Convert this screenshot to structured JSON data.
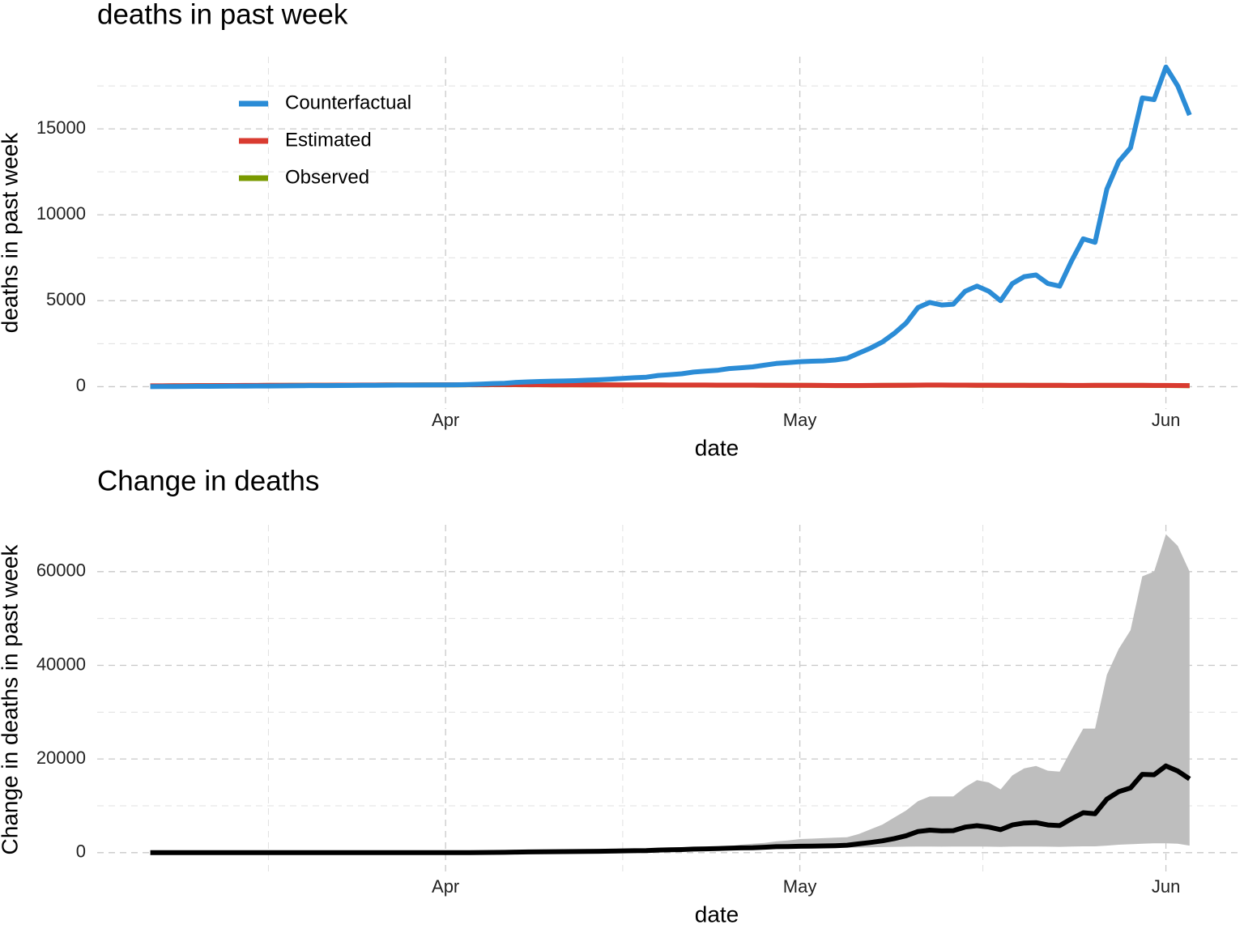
{
  "chart_data": [
    {
      "type": "line",
      "title": "deaths in past week",
      "xlabel": "date",
      "ylabel": "deaths in past week",
      "x": [
        0,
        1,
        2,
        3,
        4,
        5,
        6,
        7,
        8,
        9,
        10,
        11,
        12,
        13,
        14,
        15,
        16,
        17,
        18,
        19,
        20,
        21,
        22,
        23,
        24,
        25,
        26,
        27,
        28,
        29,
        30,
        31,
        32,
        33,
        34,
        35,
        36,
        37,
        38,
        39,
        40,
        41,
        42,
        43,
        44,
        45,
        46,
        47,
        48,
        49,
        50,
        51,
        52,
        53,
        54,
        55,
        56,
        57,
        58,
        59,
        60,
        61,
        62,
        63,
        64,
        65,
        66,
        67,
        68,
        69,
        70,
        71,
        72,
        73,
        74,
        75,
        76,
        77,
        78,
        79,
        80,
        81,
        82,
        83,
        84,
        85,
        86,
        87,
        88
      ],
      "xlim": [
        -4.5,
        92.2
      ],
      "xticks": [
        {
          "value": 25,
          "label": "Apr"
        },
        {
          "value": 55,
          "label": "May"
        },
        {
          "value": 86,
          "label": "Jun"
        }
      ],
      "ylim": [
        -1300,
        19200
      ],
      "yticks": [
        0,
        5000,
        10000,
        15000
      ],
      "grid": true,
      "legend": "top-left",
      "series": [
        {
          "name": "Counterfactual",
          "color": "#2b8cd6",
          "values": [
            0,
            5,
            10,
            15,
            20,
            20,
            25,
            30,
            35,
            40,
            40,
            45,
            50,
            55,
            60,
            60,
            65,
            70,
            75,
            80,
            85,
            90,
            90,
            95,
            100,
            100,
            110,
            130,
            150,
            180,
            200,
            250,
            280,
            300,
            320,
            330,
            350,
            380,
            400,
            440,
            480,
            520,
            550,
            650,
            700,
            750,
            850,
            900,
            950,
            1050,
            1100,
            1150,
            1250,
            1350,
            1400,
            1450,
            1480,
            1500,
            1550,
            1650,
            1950,
            2250,
            2600,
            3100,
            3700,
            4600,
            4900,
            4750,
            4800,
            5550,
            5850,
            5550,
            5000,
            6000,
            6400,
            6500,
            6000,
            5850,
            7300,
            8600,
            8400,
            11500,
            13100,
            13900,
            16800,
            16700,
            18600,
            17500,
            15800
          ]
        },
        {
          "name": "Estimated",
          "color": "#d93b30",
          "values": [
            50,
            50,
            55,
            55,
            60,
            60,
            65,
            65,
            70,
            70,
            75,
            75,
            80,
            80,
            85,
            85,
            90,
            90,
            95,
            95,
            100,
            100,
            100,
            105,
            105,
            110,
            110,
            115,
            115,
            120,
            120,
            120,
            115,
            115,
            110,
            110,
            110,
            105,
            105,
            105,
            100,
            100,
            100,
            100,
            95,
            95,
            95,
            95,
            90,
            90,
            90,
            90,
            85,
            85,
            80,
            80,
            75,
            70,
            65,
            65,
            65,
            70,
            75,
            80,
            85,
            90,
            95,
            95,
            90,
            90,
            85,
            85,
            80,
            80,
            80,
            75,
            75,
            75,
            70,
            70,
            75,
            75,
            75,
            75,
            75,
            70,
            70,
            65,
            60
          ]
        },
        {
          "name": "Observed",
          "color": "#7a9a01",
          "values": [
            45,
            45,
            50,
            50,
            55,
            55,
            60,
            60,
            65,
            65,
            70,
            70,
            75,
            75,
            80,
            80,
            85,
            85,
            90,
            90,
            95,
            95,
            95,
            100,
            100,
            105,
            105,
            110,
            110,
            115,
            115,
            115,
            110,
            110,
            105,
            105,
            105,
            100,
            100,
            100,
            95,
            95,
            95,
            95,
            90,
            90,
            90,
            90,
            85,
            85,
            85,
            85,
            80,
            80,
            75,
            75,
            70,
            65,
            60,
            60,
            60,
            65,
            70,
            75,
            80,
            85,
            90,
            90,
            85,
            85,
            80,
            80,
            75,
            75,
            75,
            70,
            70,
            70,
            65,
            65,
            70,
            70,
            70,
            70,
            70,
            65,
            65,
            60,
            55
          ]
        }
      ]
    },
    {
      "type": "ribbon",
      "title": "Change in deaths",
      "xlabel": "date",
      "ylabel": "Change in deaths in past week",
      "x": [
        0,
        1,
        2,
        3,
        4,
        5,
        6,
        7,
        8,
        9,
        10,
        11,
        12,
        13,
        14,
        15,
        16,
        17,
        18,
        19,
        20,
        21,
        22,
        23,
        24,
        25,
        26,
        27,
        28,
        29,
        30,
        31,
        32,
        33,
        34,
        35,
        36,
        37,
        38,
        39,
        40,
        41,
        42,
        43,
        44,
        45,
        46,
        47,
        48,
        49,
        50,
        51,
        52,
        53,
        54,
        55,
        56,
        57,
        58,
        59,
        60,
        61,
        62,
        63,
        64,
        65,
        66,
        67,
        68,
        69,
        70,
        71,
        72,
        73,
        74,
        75,
        76,
        77,
        78,
        79,
        80,
        81,
        82,
        83,
        84,
        85,
        86,
        87,
        88
      ],
      "xlim": [
        -4.5,
        92.2
      ],
      "xticks": [
        {
          "value": 25,
          "label": "Apr"
        },
        {
          "value": 55,
          "label": "May"
        },
        {
          "value": 86,
          "label": "Jun"
        }
      ],
      "ylim": [
        -4700,
        70000
      ],
      "yticks": [
        0,
        20000,
        40000,
        60000
      ],
      "grid": true,
      "series": [
        {
          "color": "#000000",
          "band_color": "#bebebe",
          "values": [
            0,
            0,
            0,
            0,
            0,
            0,
            0,
            0,
            0,
            0,
            0,
            0,
            0,
            0,
            0,
            0,
            0,
            0,
            0,
            0,
            0,
            0,
            0,
            0,
            0,
            0,
            0,
            15,
            35,
            60,
            80,
            130,
            165,
            185,
            210,
            220,
            245,
            275,
            295,
            340,
            380,
            420,
            450,
            555,
            605,
            655,
            760,
            810,
            860,
            965,
            1015,
            1065,
            1170,
            1275,
            1320,
            1375,
            1410,
            1435,
            1490,
            1590,
            1890,
            2180,
            2525,
            3020,
            3615,
            4510,
            4805,
            4655,
            4710,
            5465,
            5765,
            5470,
            4920,
            5920,
            6325,
            6425,
            5925,
            5775,
            7230,
            8530,
            8325,
            11425,
            13025,
            13825,
            16725,
            16630,
            18530,
            17435,
            15740
          ],
          "upper": [
            0,
            0,
            0,
            0,
            0,
            0,
            0,
            0,
            0,
            0,
            0,
            0,
            0,
            0,
            0,
            0,
            0,
            0,
            0,
            0,
            0,
            0,
            0,
            0,
            0,
            0,
            0,
            20,
            45,
            75,
            100,
            160,
            200,
            230,
            260,
            270,
            300,
            340,
            370,
            420,
            470,
            520,
            560,
            680,
            750,
            810,
            1000,
            1100,
            1250,
            1400,
            1700,
            1900,
            2100,
            2400,
            2600,
            2900,
            3000,
            3100,
            3200,
            3300,
            4000,
            5000,
            6000,
            7500,
            9000,
            11000,
            12000,
            12000,
            12000,
            14000,
            15500,
            15000,
            13500,
            16500,
            18000,
            18500,
            17500,
            17300,
            22000,
            26500,
            26500,
            38000,
            43500,
            47500,
            59000,
            60000,
            68000,
            65500,
            60000
          ],
          "lower": [
            0,
            0,
            0,
            0,
            0,
            0,
            0,
            0,
            0,
            0,
            0,
            0,
            0,
            0,
            0,
            0,
            0,
            0,
            0,
            0,
            0,
            0,
            0,
            0,
            0,
            0,
            0,
            10,
            25,
            45,
            60,
            100,
            130,
            140,
            160,
            170,
            190,
            210,
            230,
            260,
            290,
            320,
            340,
            400,
            430,
            470,
            540,
            580,
            620,
            700,
            720,
            760,
            840,
            900,
            950,
            990,
            1000,
            1020,
            1050,
            1080,
            1100,
            1150,
            1200,
            1250,
            1280,
            1300,
            1300,
            1280,
            1300,
            1300,
            1300,
            1280,
            1250,
            1300,
            1300,
            1300,
            1280,
            1250,
            1300,
            1350,
            1350,
            1500,
            1700,
            1800,
            1900,
            2000,
            2000,
            1900,
            1500
          ]
        }
      ]
    }
  ]
}
